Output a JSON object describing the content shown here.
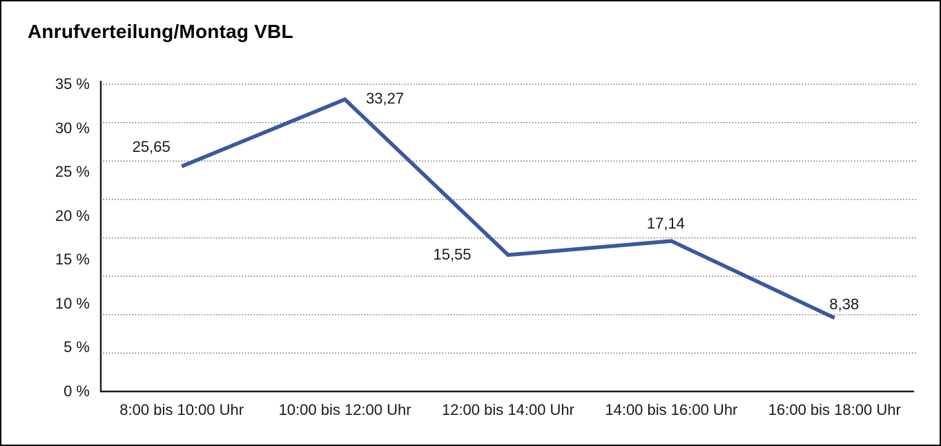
{
  "title": "Anrufverteilung/Montag VBL",
  "chart_data": {
    "type": "line",
    "title": "Anrufverteilung/Montag VBL",
    "categories": [
      "8:00 bis 10:00 Uhr",
      "10:00 bis 12:00 Uhr",
      "12:00 bis 14:00 Uhr",
      "14:00 bis 16:00 Uhr",
      "16:00 bis 18:00 Uhr"
    ],
    "values": [
      25.65,
      33.27,
      15.55,
      17.14,
      8.38
    ],
    "value_labels": [
      "25,65",
      "33,27",
      "15,55",
      "17,14",
      "8,38"
    ],
    "y_ticks": [
      "35 %",
      "30 %",
      "25 %",
      "20 %",
      "15 %",
      "10 %",
      "5 %",
      "0 %"
    ],
    "ylim": [
      0,
      35
    ],
    "y_tick_step": 5,
    "xlabel": "",
    "ylabel": "",
    "legend": "none",
    "grid": "horizontal-dotted",
    "line_color": "#3B58A0",
    "gridline_color": "#595959",
    "axis_color": "#1a1a1a"
  }
}
